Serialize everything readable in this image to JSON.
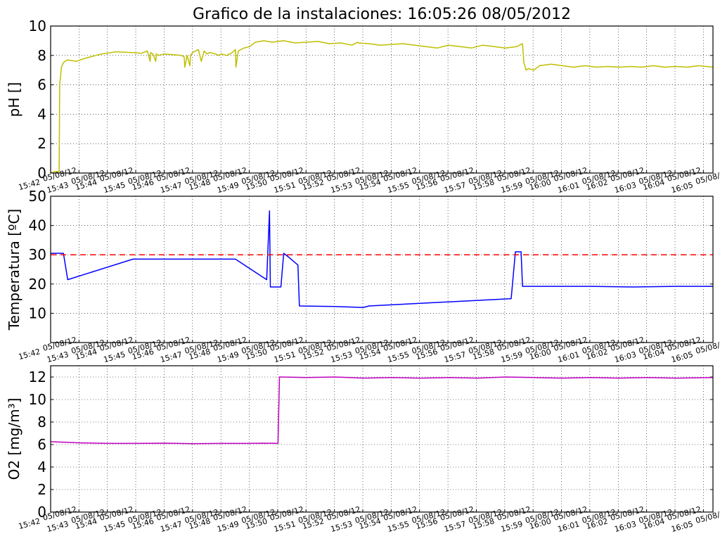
{
  "title": "Grafico de la instalaciones: 16:05:26 08/05/2012",
  "x_ticks": [
    "15:42",
    "15:43",
    "15:44",
    "15:45",
    "15:46",
    "15:47",
    "15:48",
    "15:49",
    "15:50",
    "15:51",
    "15:52",
    "15:53",
    "15:54",
    "15:55",
    "15:56",
    "15:57",
    "15:58",
    "15:59",
    "16:00",
    "16:01",
    "16:02",
    "16:03",
    "16:04",
    "16:05"
  ],
  "x_tick_prefix": "05/08/12",
  "chart_data": [
    {
      "type": "line",
      "ylabel": "pH []",
      "ylim": [
        0,
        10
      ],
      "yticks": [
        0,
        2,
        4,
        6,
        8,
        10
      ],
      "xlim": [
        0,
        23.3
      ],
      "grid": true,
      "series": [
        {
          "color": "#bfbf00",
          "x": [
            0,
            0.15,
            0.3,
            0.32,
            0.38,
            0.45,
            0.5,
            0.6,
            0.9,
            1.2,
            1.8,
            2.3,
            2.8,
            3.2,
            3.4,
            3.5,
            3.52,
            3.6,
            3.7,
            3.72,
            3.8,
            4.0,
            4.3,
            4.6,
            4.7,
            4.72,
            4.8,
            4.9,
            4.92,
            5.0,
            5.2,
            5.3,
            5.4,
            5.5,
            5.6,
            5.7,
            5.8,
            5.9,
            6.0,
            6.2,
            6.4,
            6.5,
            6.52,
            6.6,
            6.8,
            7.0,
            7.2,
            7.5,
            7.8,
            8.2,
            8.6,
            9.0,
            9.4,
            9.8,
            10.2,
            10.6,
            10.8,
            10.82,
            11.2,
            11.6,
            12.0,
            12.4,
            12.8,
            13.2,
            13.6,
            14.0,
            14.4,
            14.8,
            15.2,
            15.6,
            16.0,
            16.4,
            16.6,
            16.65,
            16.7,
            16.72,
            16.8,
            17.0,
            17.2,
            17.6,
            18.0,
            18.4,
            18.8,
            19.2,
            19.6,
            20.0,
            20.4,
            20.8,
            21.2,
            21.6,
            22.0,
            22.4,
            22.8,
            23.3
          ],
          "y": [
            0,
            0.1,
            0.1,
            6.0,
            7.2,
            7.5,
            7.6,
            7.7,
            7.6,
            7.8,
            8.1,
            8.25,
            8.2,
            8.15,
            8.3,
            7.6,
            8.2,
            8.1,
            7.6,
            8.1,
            8.0,
            8.1,
            8.05,
            8.0,
            7.9,
            7.2,
            8.0,
            7.3,
            8.0,
            8.2,
            8.4,
            7.6,
            8.3,
            8.1,
            8.2,
            8.15,
            8.1,
            8.0,
            8.1,
            8.0,
            8.2,
            8.4,
            7.2,
            8.3,
            8.5,
            8.6,
            8.9,
            9.0,
            8.9,
            9.0,
            8.85,
            8.9,
            8.95,
            8.8,
            8.85,
            8.7,
            8.9,
            8.85,
            8.8,
            8.7,
            8.75,
            8.8,
            8.7,
            8.6,
            8.5,
            8.7,
            8.6,
            8.5,
            8.7,
            8.6,
            8.5,
            8.6,
            8.8,
            7.5,
            7.2,
            7.0,
            7.1,
            7.0,
            7.3,
            7.4,
            7.3,
            7.2,
            7.3,
            7.2,
            7.25,
            7.2,
            7.25,
            7.2,
            7.3,
            7.2,
            7.25,
            7.2,
            7.3,
            7.2
          ]
        }
      ]
    },
    {
      "type": "line",
      "ylabel": "Temperatura [ºC]",
      "ylim": [
        0,
        50
      ],
      "yticks": [
        10,
        20,
        30,
        40,
        50
      ],
      "xlim": [
        0,
        23.3
      ],
      "grid": true,
      "series": [
        {
          "color": "#0000ff",
          "x": [
            0,
            0.45,
            0.6,
            2.9,
            3.6,
            6.5,
            7.6,
            7.7,
            7.73,
            7.8,
            8.1,
            8.2,
            8.4,
            8.7,
            8.75,
            10.0,
            11.0,
            11.2,
            16.2,
            16.35,
            16.55,
            16.6,
            16.7,
            17.5,
            19.0,
            20.5,
            22.0,
            23.3
          ],
          "y": [
            30.5,
            30.5,
            21.5,
            28.5,
            28.5,
            28.5,
            21.5,
            45.0,
            19.0,
            19.0,
            19.0,
            30.5,
            29.0,
            26.5,
            12.5,
            12.3,
            12.0,
            12.5,
            15.0,
            31.0,
            31.0,
            19.2,
            19.2,
            19.2,
            19.2,
            19.0,
            19.2,
            19.2
          ]
        },
        {
          "color": "#ff0000",
          "style": "dashed",
          "x": [
            0,
            23.3
          ],
          "y": [
            30,
            30
          ]
        }
      ]
    },
    {
      "type": "line",
      "ylabel": "O2 [mg/m³]",
      "ylim": [
        0,
        13
      ],
      "yticks": [
        0,
        2,
        4,
        6,
        8,
        10,
        12
      ],
      "xlim": [
        0,
        23.3
      ],
      "grid": true,
      "series": [
        {
          "color": "#bf00bf",
          "x": [
            0,
            0.5,
            1.0,
            2.0,
            3.0,
            4.0,
            5.0,
            6.0,
            7.0,
            7.5,
            8.0,
            8.05,
            8.1,
            9.0,
            10.0,
            11.0,
            12.0,
            13.0,
            14.0,
            15.0,
            16.0,
            17.0,
            18.0,
            19.0,
            20.0,
            21.0,
            22.0,
            23.3
          ],
          "y": [
            6.25,
            6.2,
            6.15,
            6.1,
            6.1,
            6.12,
            6.08,
            6.1,
            6.1,
            6.12,
            6.1,
            12.0,
            12.0,
            11.95,
            12.0,
            11.9,
            11.95,
            11.9,
            11.95,
            11.9,
            12.0,
            11.95,
            11.9,
            11.95,
            11.9,
            11.95,
            11.9,
            11.95
          ]
        }
      ]
    }
  ]
}
